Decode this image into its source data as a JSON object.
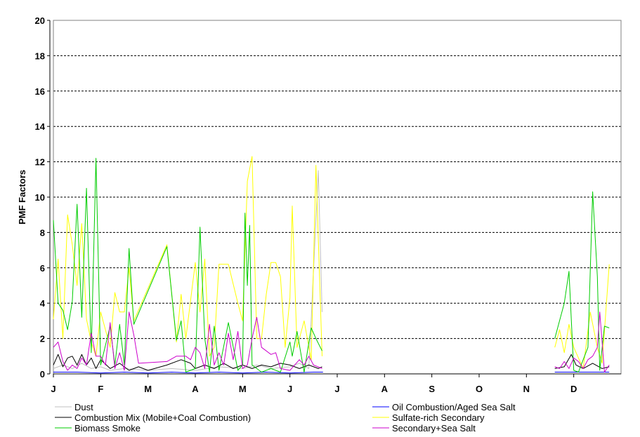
{
  "chart_data": {
    "type": "line",
    "title": "",
    "xlabel": "",
    "ylabel": "PMF Factors",
    "ylim": [
      0,
      20
    ],
    "yticks": [
      "0",
      "2",
      "4",
      "6",
      "8",
      "10",
      "12",
      "14",
      "16",
      "18",
      "20"
    ],
    "xticks": [
      "J",
      "F",
      "M",
      "A",
      "M",
      "J",
      "J",
      "A",
      "S",
      "O",
      "N",
      "D"
    ],
    "xlim": [
      0,
      12
    ],
    "grid": "horizontal-dashed",
    "legend_position": "bottom",
    "series": [
      {
        "name": "Dust",
        "color": "#c0c0c0",
        "points": [
          [
            0.0,
            0.3
          ],
          [
            0.2,
            0.5
          ],
          [
            0.4,
            0.3
          ],
          [
            0.6,
            0.6
          ],
          [
            0.8,
            0.3
          ],
          [
            1.0,
            0.4
          ],
          [
            1.2,
            0.2
          ],
          [
            1.5,
            0.3
          ],
          [
            2.0,
            0.2
          ],
          [
            2.5,
            0.3
          ],
          [
            3.0,
            0.2
          ],
          [
            3.5,
            0.4
          ],
          [
            4.0,
            0.3
          ],
          [
            4.3,
            0.5
          ],
          [
            4.6,
            0.3
          ],
          [
            5.0,
            0.4
          ],
          [
            5.2,
            0.6
          ],
          [
            5.4,
            0.3
          ],
          [
            5.6,
            11.5
          ],
          [
            5.68,
            3.5
          ]
        ],
        "segments": [
          [
            0,
            20
          ]
        ]
      },
      {
        "name": "Oil Combustion/Aged Sea Salt",
        "color": "#0000ff",
        "points": [
          [
            0.0,
            0.1
          ],
          [
            0.5,
            0.1
          ],
          [
            1.0,
            0.05
          ],
          [
            1.5,
            0.1
          ],
          [
            2.0,
            0.05
          ],
          [
            2.5,
            0.1
          ],
          [
            3.0,
            0.05
          ],
          [
            3.5,
            0.1
          ],
          [
            4.0,
            0.05
          ],
          [
            4.5,
            0.1
          ],
          [
            5.0,
            0.05
          ],
          [
            5.5,
            0.1
          ],
          [
            5.7,
            0.1
          ],
          [
            10.6,
            0.1
          ],
          [
            11.0,
            0.1
          ],
          [
            11.4,
            0.1
          ],
          [
            11.75,
            0.1
          ]
        ],
        "segments": [
          [
            0,
            13
          ],
          [
            13,
            17
          ]
        ]
      },
      {
        "name": "Combustion Mix (Mobile+Coal Combustion)",
        "color": "#000000",
        "points": [
          [
            0.0,
            0.5
          ],
          [
            0.1,
            1.1
          ],
          [
            0.2,
            0.4
          ],
          [
            0.3,
            0.9
          ],
          [
            0.4,
            1.0
          ],
          [
            0.5,
            0.5
          ],
          [
            0.6,
            1.1
          ],
          [
            0.7,
            0.5
          ],
          [
            0.8,
            0.9
          ],
          [
            0.9,
            0.3
          ],
          [
            1.0,
            0.8
          ],
          [
            1.2,
            0.3
          ],
          [
            1.4,
            0.6
          ],
          [
            1.6,
            0.2
          ],
          [
            1.8,
            0.4
          ],
          [
            2.0,
            0.2
          ],
          [
            2.4,
            0.5
          ],
          [
            2.7,
            0.8
          ],
          [
            2.9,
            0.6
          ],
          [
            3.0,
            0.3
          ],
          [
            3.2,
            0.5
          ],
          [
            3.4,
            0.3
          ],
          [
            3.6,
            0.6
          ],
          [
            3.8,
            0.3
          ],
          [
            4.0,
            0.5
          ],
          [
            4.2,
            0.3
          ],
          [
            4.4,
            0.5
          ],
          [
            4.6,
            0.4
          ],
          [
            4.8,
            0.6
          ],
          [
            5.0,
            0.5
          ],
          [
            5.2,
            0.3
          ],
          [
            5.4,
            0.5
          ],
          [
            5.6,
            0.3
          ],
          [
            5.68,
            0.4
          ],
          [
            10.6,
            0.3
          ],
          [
            10.8,
            0.4
          ],
          [
            10.95,
            1.1
          ],
          [
            11.05,
            0.5
          ],
          [
            11.2,
            0.3
          ],
          [
            11.4,
            0.6
          ],
          [
            11.6,
            0.3
          ],
          [
            11.75,
            0.4
          ]
        ],
        "segments": [
          [
            0,
            34
          ],
          [
            34,
            42
          ]
        ]
      },
      {
        "name": "Sulfate-rich Secondary",
        "color": "#ffff00",
        "points": [
          [
            0.0,
            3.1
          ],
          [
            0.1,
            6.5
          ],
          [
            0.2,
            2.0
          ],
          [
            0.3,
            9.0
          ],
          [
            0.4,
            7.3
          ],
          [
            0.5,
            5.0
          ],
          [
            0.6,
            8.5
          ],
          [
            0.7,
            3.1
          ],
          [
            0.8,
            1.8
          ],
          [
            0.9,
            1.0
          ],
          [
            1.0,
            3.5
          ],
          [
            1.2,
            1.5
          ],
          [
            1.3,
            4.6
          ],
          [
            1.4,
            3.5
          ],
          [
            1.5,
            3.5
          ],
          [
            1.6,
            6.0
          ],
          [
            1.7,
            3.0
          ],
          [
            2.4,
            7.3
          ],
          [
            2.6,
            1.8
          ],
          [
            2.7,
            4.5
          ],
          [
            2.8,
            2.0
          ],
          [
            3.0,
            6.3
          ],
          [
            3.1,
            3.5
          ],
          [
            3.2,
            6.5
          ],
          [
            3.3,
            1.0
          ],
          [
            3.4,
            1.5
          ],
          [
            3.5,
            6.2
          ],
          [
            3.7,
            6.2
          ],
          [
            3.9,
            4.0
          ],
          [
            4.0,
            3.0
          ],
          [
            4.1,
            10.9
          ],
          [
            4.2,
            12.3
          ],
          [
            4.3,
            2.0
          ],
          [
            4.4,
            2.0
          ],
          [
            4.5,
            4.5
          ],
          [
            4.6,
            6.3
          ],
          [
            4.7,
            6.3
          ],
          [
            4.8,
            5.5
          ],
          [
            4.9,
            1.5
          ],
          [
            5.0,
            4.3
          ],
          [
            5.05,
            9.5
          ],
          [
            5.15,
            1.5
          ],
          [
            5.3,
            3.0
          ],
          [
            5.45,
            0.8
          ],
          [
            5.55,
            11.8
          ],
          [
            5.68,
            1.0
          ],
          [
            10.6,
            1.5
          ],
          [
            10.7,
            2.5
          ],
          [
            10.8,
            1.2
          ],
          [
            10.9,
            2.8
          ],
          [
            11.0,
            1.5
          ],
          [
            11.2,
            0.3
          ],
          [
            11.35,
            3.5
          ],
          [
            11.5,
            1.5
          ],
          [
            11.6,
            0.6
          ],
          [
            11.75,
            6.2
          ]
        ],
        "segments": [
          [
            0,
            46
          ],
          [
            46,
            56
          ]
        ]
      },
      {
        "name": "Biomass Smoke",
        "color": "#00cc00",
        "points": [
          [
            0.0,
            8.7
          ],
          [
            0.1,
            4.0
          ],
          [
            0.2,
            3.6
          ],
          [
            0.3,
            2.5
          ],
          [
            0.4,
            4.1
          ],
          [
            0.5,
            9.6
          ],
          [
            0.6,
            3.2
          ],
          [
            0.7,
            10.5
          ],
          [
            0.8,
            1.2
          ],
          [
            0.9,
            12.2
          ],
          [
            1.0,
            0.5
          ],
          [
            1.2,
            2.7
          ],
          [
            1.3,
            0.5
          ],
          [
            1.4,
            2.8
          ],
          [
            1.5,
            0.5
          ],
          [
            1.6,
            7.1
          ],
          [
            1.7,
            2.8
          ],
          [
            2.4,
            7.2
          ],
          [
            2.6,
            1.9
          ],
          [
            2.7,
            3.0
          ],
          [
            2.8,
            0.1
          ],
          [
            3.0,
            0.3
          ],
          [
            3.1,
            8.3
          ],
          [
            3.2,
            2.0
          ],
          [
            3.3,
            0.1
          ],
          [
            3.4,
            2.7
          ],
          [
            3.5,
            0.2
          ],
          [
            3.7,
            2.9
          ],
          [
            3.9,
            0.2
          ],
          [
            4.0,
            0.5
          ],
          [
            4.05,
            9.1
          ],
          [
            4.1,
            5.0
          ],
          [
            4.15,
            8.4
          ],
          [
            4.2,
            0.5
          ],
          [
            4.4,
            0.1
          ],
          [
            4.6,
            0.3
          ],
          [
            4.8,
            0.1
          ],
          [
            5.0,
            1.8
          ],
          [
            5.05,
            1.0
          ],
          [
            5.15,
            2.4
          ],
          [
            5.3,
            0.1
          ],
          [
            5.45,
            2.6
          ],
          [
            5.55,
            2.0
          ],
          [
            5.68,
            1.3
          ],
          [
            10.6,
            2.0
          ],
          [
            10.8,
            4.0
          ],
          [
            10.9,
            5.8
          ],
          [
            11.0,
            0.2
          ],
          [
            11.1,
            0.1
          ],
          [
            11.2,
            0.8
          ],
          [
            11.3,
            1.5
          ],
          [
            11.4,
            10.3
          ],
          [
            11.5,
            5.5
          ],
          [
            11.55,
            0.2
          ],
          [
            11.65,
            2.7
          ],
          [
            11.75,
            2.6
          ]
        ],
        "segments": [
          [
            0,
            44
          ],
          [
            44,
            56
          ]
        ]
      },
      {
        "name": "Secondary+Sea Salt",
        "color": "#cc00cc",
        "points": [
          [
            0.0,
            1.5
          ],
          [
            0.1,
            1.8
          ],
          [
            0.2,
            0.7
          ],
          [
            0.3,
            0.2
          ],
          [
            0.4,
            0.5
          ],
          [
            0.5,
            0.3
          ],
          [
            0.6,
            0.9
          ],
          [
            0.7,
            0.5
          ],
          [
            0.8,
            2.3
          ],
          [
            0.9,
            1.0
          ],
          [
            1.0,
            1.0
          ],
          [
            1.1,
            0.5
          ],
          [
            1.2,
            2.9
          ],
          [
            1.3,
            0.3
          ],
          [
            1.4,
            1.2
          ],
          [
            1.5,
            0.2
          ],
          [
            1.6,
            3.5
          ],
          [
            1.7,
            2.2
          ],
          [
            1.8,
            0.6
          ],
          [
            2.4,
            0.7
          ],
          [
            2.6,
            1.0
          ],
          [
            2.8,
            1.0
          ],
          [
            2.9,
            0.8
          ],
          [
            3.0,
            1.5
          ],
          [
            3.1,
            1.2
          ],
          [
            3.2,
            0.3
          ],
          [
            3.3,
            2.8
          ],
          [
            3.4,
            0.5
          ],
          [
            3.5,
            1.2
          ],
          [
            3.6,
            0.5
          ],
          [
            3.7,
            2.3
          ],
          [
            3.8,
            0.8
          ],
          [
            3.9,
            2.4
          ],
          [
            4.0,
            0.3
          ],
          [
            4.1,
            0.5
          ],
          [
            4.2,
            2.0
          ],
          [
            4.3,
            3.2
          ],
          [
            4.4,
            1.5
          ],
          [
            4.5,
            1.3
          ],
          [
            4.6,
            1.1
          ],
          [
            4.7,
            1.2
          ],
          [
            4.8,
            0.3
          ],
          [
            5.0,
            0.2
          ],
          [
            5.1,
            0.5
          ],
          [
            5.2,
            0.8
          ],
          [
            5.3,
            0.5
          ],
          [
            5.4,
            1.0
          ],
          [
            5.5,
            0.5
          ],
          [
            5.68,
            0.3
          ],
          [
            10.6,
            0.4
          ],
          [
            10.7,
            0.3
          ],
          [
            10.8,
            0.7
          ],
          [
            10.9,
            0.3
          ],
          [
            11.0,
            0.9
          ],
          [
            11.1,
            0.7
          ],
          [
            11.2,
            0.3
          ],
          [
            11.3,
            0.8
          ],
          [
            11.4,
            1.0
          ],
          [
            11.5,
            1.5
          ],
          [
            11.55,
            3.5
          ],
          [
            11.65,
            0.1
          ],
          [
            11.75,
            0.5
          ]
        ],
        "segments": [
          [
            0,
            49
          ],
          [
            49,
            62
          ]
        ]
      }
    ]
  }
}
